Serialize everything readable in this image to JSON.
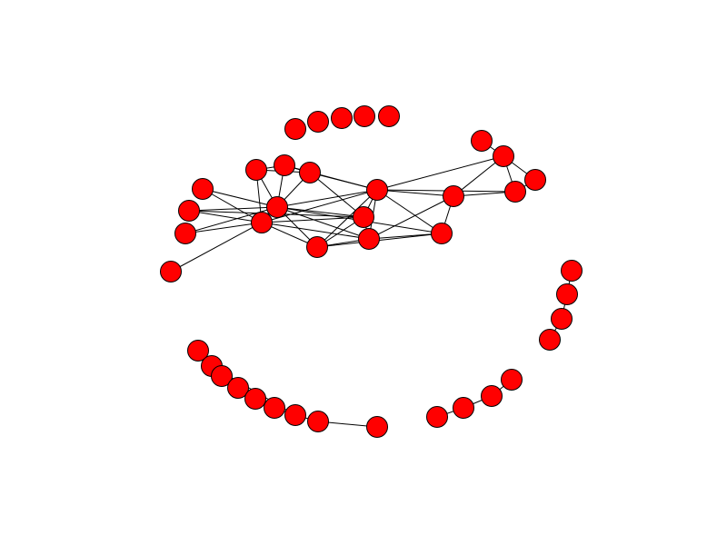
{
  "diagram": {
    "type": "network-graph",
    "node_color": "#ff0000",
    "node_stroke_color": "#000000",
    "edge_color": "#000000",
    "background_color": "#ffffff",
    "node_count": 42,
    "edge_count": 63
  }
}
